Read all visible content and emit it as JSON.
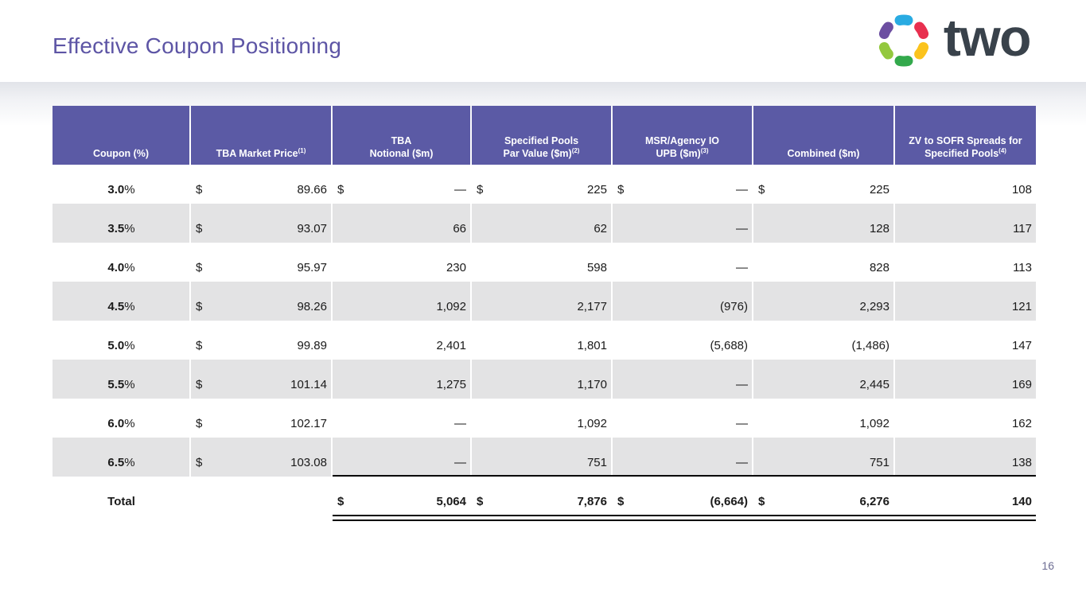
{
  "slide": {
    "title": "Effective Coupon Positioning",
    "page_number": "16",
    "logo": {
      "wordmark": "two",
      "mark_colors": {
        "top": "#29ABE2",
        "upper_right": "#E8304F",
        "lower_right": "#FBC31D",
        "bottom": "#33A94C",
        "lower_left": "#93C83E",
        "upper_left": "#6C4EA1"
      }
    },
    "colors": {
      "title": "#5D55A5",
      "header_bg": "#5B5AA5",
      "stripe": "#E3E3E4",
      "wordmark": "#39424B",
      "page_number": "#6E6E94"
    }
  },
  "table": {
    "columns": [
      {
        "lines": [
          "Coupon (%)"
        ],
        "sup": ""
      },
      {
        "lines": [
          "TBA Market Price"
        ],
        "sup": "(1)"
      },
      {
        "lines": [
          "TBA",
          "Notional ($m)"
        ],
        "sup": ""
      },
      {
        "lines": [
          "Specified Pools",
          "Par Value ($m)"
        ],
        "sup": "(2)"
      },
      {
        "lines": [
          "MSR/Agency IO",
          "UPB ($m)"
        ],
        "sup": "(3)"
      },
      {
        "lines": [
          "Combined ($m)"
        ],
        "sup": ""
      },
      {
        "lines": [
          "ZV to SOFR Spreads for",
          "Specified Pools"
        ],
        "sup": "(4)"
      }
    ],
    "rows": [
      {
        "coupon": "3.0",
        "suffix": "%",
        "cells": [
          [
            "$",
            "89.66"
          ],
          [
            "$",
            "—"
          ],
          [
            "$",
            "225"
          ],
          [
            "$",
            "—"
          ],
          [
            "$",
            "225"
          ],
          [
            "",
            "108"
          ]
        ]
      },
      {
        "coupon": "3.5",
        "suffix": "%",
        "cells": [
          [
            "$",
            "93.07"
          ],
          [
            "",
            "66"
          ],
          [
            "",
            "62"
          ],
          [
            "",
            "—"
          ],
          [
            "",
            "128"
          ],
          [
            "",
            "117"
          ]
        ]
      },
      {
        "coupon": "4.0",
        "suffix": "%",
        "cells": [
          [
            "$",
            "95.97"
          ],
          [
            "",
            "230"
          ],
          [
            "",
            "598"
          ],
          [
            "",
            "—"
          ],
          [
            "",
            "828"
          ],
          [
            "",
            "113"
          ]
        ]
      },
      {
        "coupon": "4.5",
        "suffix": "%",
        "cells": [
          [
            "$",
            "98.26"
          ],
          [
            "",
            "1,092"
          ],
          [
            "",
            "2,177"
          ],
          [
            "",
            "(976)"
          ],
          [
            "",
            "2,293"
          ],
          [
            "",
            "121"
          ]
        ]
      },
      {
        "coupon": "5.0",
        "suffix": "%",
        "cells": [
          [
            "$",
            "99.89"
          ],
          [
            "",
            "2,401"
          ],
          [
            "",
            "1,801"
          ],
          [
            "",
            "(5,688)"
          ],
          [
            "",
            "(1,486)"
          ],
          [
            "",
            "147"
          ]
        ]
      },
      {
        "coupon": "5.5",
        "suffix": "%",
        "cells": [
          [
            "$",
            "101.14"
          ],
          [
            "",
            "1,275"
          ],
          [
            "",
            "1,170"
          ],
          [
            "",
            "—"
          ],
          [
            "",
            "2,445"
          ],
          [
            "",
            "169"
          ]
        ]
      },
      {
        "coupon": "6.0",
        "suffix": "%",
        "cells": [
          [
            "$",
            "102.17"
          ],
          [
            "",
            "—"
          ],
          [
            "",
            "1,092"
          ],
          [
            "",
            "—"
          ],
          [
            "",
            "1,092"
          ],
          [
            "",
            "162"
          ]
        ]
      },
      {
        "coupon": "6.5",
        "suffix": "%",
        "cells": [
          [
            "$",
            "103.08"
          ],
          [
            "",
            "—"
          ],
          [
            "",
            "751"
          ],
          [
            "",
            "—"
          ],
          [
            "",
            "751"
          ],
          [
            "",
            "138"
          ]
        ]
      }
    ],
    "total": {
      "label": "Total",
      "cells": [
        [
          "",
          ""
        ],
        [
          "$",
          "5,064"
        ],
        [
          "$",
          "7,876"
        ],
        [
          "$",
          "(6,664)"
        ],
        [
          "$",
          "6,276"
        ],
        [
          "",
          "140"
        ]
      ]
    }
  }
}
